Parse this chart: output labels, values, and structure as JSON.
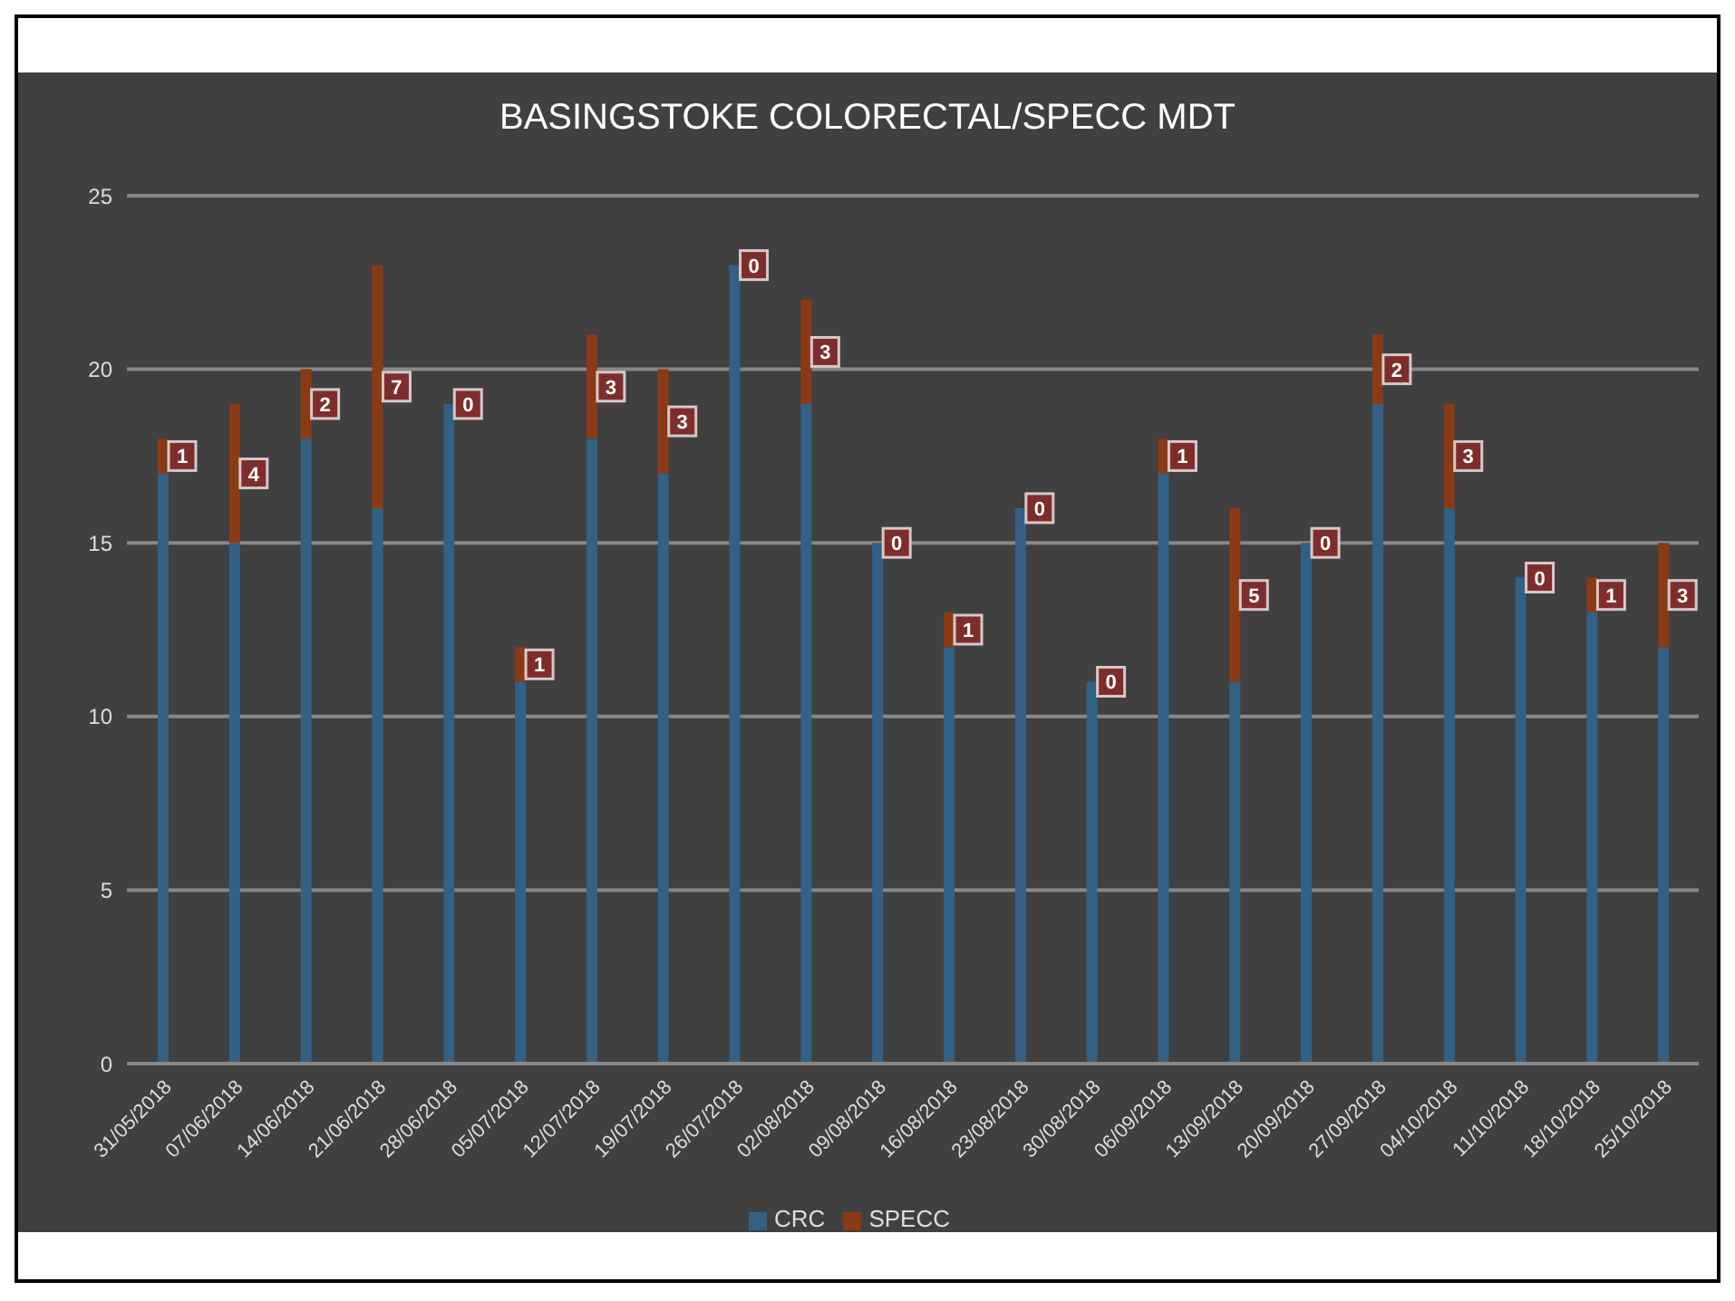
{
  "chart_data": {
    "type": "bar",
    "title": "BASINGSTOKE COLORECTAL/SPECC MDT",
    "stacked": true,
    "grid": "y",
    "legend": "bottom",
    "categories": [
      "31/05/2018",
      "07/06/2018",
      "14/06/2018",
      "21/06/2018",
      "28/06/2018",
      "05/07/2018",
      "12/07/2018",
      "19/07/2018",
      "26/07/2018",
      "02/08/2018",
      "09/08/2018",
      "16/08/2018",
      "23/08/2018",
      "30/08/2018",
      "06/09/2018",
      "13/09/2018",
      "20/09/2018",
      "27/09/2018",
      "04/10/2018",
      "11/10/2018",
      "18/10/2018",
      "25/10/2018"
    ],
    "series": [
      {
        "name": "CRC",
        "color": "#336085",
        "values": [
          17,
          15,
          18,
          16,
          19,
          11,
          18,
          17,
          23,
          19,
          15,
          12,
          16,
          11,
          17,
          11,
          15,
          19,
          16,
          14,
          13,
          12
        ]
      },
      {
        "name": "SPECC",
        "color": "#8a3a14",
        "values": [
          1,
          4,
          2,
          7,
          0,
          1,
          3,
          3,
          0,
          3,
          0,
          1,
          0,
          0,
          1,
          5,
          0,
          2,
          3,
          0,
          1,
          3
        ],
        "value_labels": [
          "1",
          "4",
          "2",
          "7",
          "0",
          "1",
          "3",
          "3",
          "0",
          "3",
          "0",
          "1",
          "0",
          "0",
          "1",
          "5",
          "0",
          "2",
          "3",
          "0",
          "1",
          "3"
        ]
      }
    ],
    "ylim": [
      0,
      25
    ],
    "yticks": [
      0,
      5,
      10,
      15,
      20,
      25
    ]
  }
}
